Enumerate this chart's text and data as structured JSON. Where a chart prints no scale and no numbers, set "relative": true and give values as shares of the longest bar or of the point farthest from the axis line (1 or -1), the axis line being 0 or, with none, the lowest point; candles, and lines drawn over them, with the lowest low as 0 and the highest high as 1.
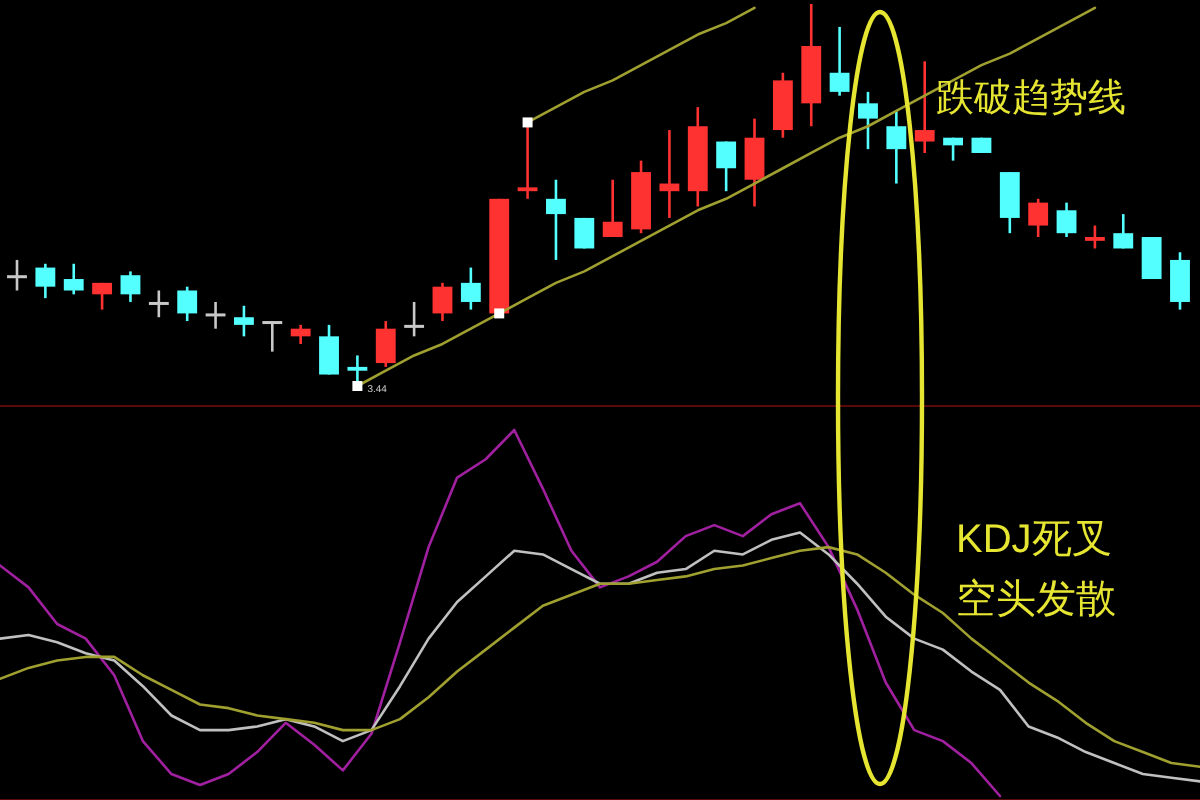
{
  "chart_data": [
    {
      "type": "candlestick",
      "relative": true,
      "categories": [
        null,
        null,
        null,
        null,
        null,
        null,
        null,
        null,
        null,
        null,
        null,
        null,
        null,
        null,
        null,
        null,
        null,
        null,
        null,
        null,
        null,
        null,
        null,
        null,
        null,
        null,
        null,
        null,
        null,
        null,
        null,
        null,
        null,
        null,
        null,
        null,
        null,
        null,
        null,
        null,
        null,
        null
      ],
      "ohlc": [
        [
          0.29,
          0.33,
          0.25,
          0.29
        ],
        [
          0.31,
          0.32,
          0.23,
          0.26
        ],
        [
          0.28,
          0.32,
          0.24,
          0.25
        ],
        [
          0.24,
          0.27,
          0.2,
          0.27
        ],
        [
          0.29,
          0.3,
          0.22,
          0.24
        ],
        [
          0.22,
          0.25,
          0.18,
          0.22
        ],
        [
          0.25,
          0.26,
          0.17,
          0.19
        ],
        [
          0.19,
          0.22,
          0.15,
          0.19
        ],
        [
          0.18,
          0.21,
          0.13,
          0.16
        ],
        [
          0.17,
          0.17,
          0.09,
          0.17
        ],
        [
          0.13,
          0.16,
          0.11,
          0.15
        ],
        [
          0.13,
          0.16,
          0.03,
          0.03
        ],
        [
          0.05,
          0.08,
          0,
          0.04
        ],
        [
          0.06,
          0.17,
          0.05,
          0.15
        ],
        [
          0.16,
          0.22,
          0.13,
          0.16
        ],
        [
          0.19,
          0.27,
          0.17,
          0.26
        ],
        [
          0.27,
          0.31,
          0.2,
          0.22
        ],
        [
          0.19,
          0.49,
          0.19,
          0.49
        ],
        [
          0.51,
          0.69,
          0.49,
          0.52
        ],
        [
          0.49,
          0.54,
          0.33,
          0.45
        ],
        [
          0.44,
          0.44,
          0.36,
          0.36
        ],
        [
          0.39,
          0.54,
          0.39,
          0.43
        ],
        [
          0.41,
          0.59,
          0.4,
          0.56
        ],
        [
          0.51,
          0.67,
          0.44,
          0.53
        ],
        [
          0.51,
          0.73,
          0.47,
          0.68
        ],
        [
          0.64,
          0.64,
          0.51,
          0.57
        ],
        [
          0.54,
          0.7,
          0.47,
          0.65
        ],
        [
          0.67,
          0.82,
          0.65,
          0.8
        ],
        [
          0.74,
          1,
          0.68,
          0.89
        ],
        [
          0.82,
          0.94,
          0.76,
          0.77
        ],
        [
          0.74,
          0.77,
          0.62,
          0.7
        ],
        [
          0.68,
          0.72,
          0.53,
          0.62
        ],
        [
          0.64,
          0.85,
          0.61,
          0.67
        ],
        [
          0.65,
          0.65,
          0.59,
          0.63
        ],
        [
          0.65,
          0.65,
          0.61,
          0.61
        ],
        [
          0.56,
          0.56,
          0.4,
          0.44
        ],
        [
          0.42,
          0.49,
          0.39,
          0.48
        ],
        [
          0.46,
          0.48,
          0.39,
          0.4
        ],
        [
          0.38,
          0.42,
          0.36,
          0.39
        ],
        [
          0.4,
          0.45,
          0.36,
          0.36
        ],
        [
          0.39,
          0.39,
          0.28,
          0.28
        ],
        [
          0.33,
          0.35,
          0.2,
          0.22
        ]
      ],
      "colors": [
        "#c8c8c8",
        "#54ffff",
        "#54ffff",
        "#ff3232",
        "#54ffff",
        "#c8c8c8",
        "#54ffff",
        "#c8c8c8",
        "#54ffff",
        "#c8c8c8",
        "#ff3232",
        "#54ffff",
        "#54ffff",
        "#ff3232",
        "#c8c8c8",
        "#ff3232",
        "#54ffff",
        "#ff3232",
        "#ff3232",
        "#54ffff",
        "#54ffff",
        "#ff3232",
        "#ff3232",
        "#ff3232",
        "#ff3232",
        "#54ffff",
        "#ff3232",
        "#ff3232",
        "#ff3232",
        "#54ffff",
        "#54ffff",
        "#54ffff",
        "#ff3232",
        "#54ffff",
        "#54ffff",
        "#54ffff",
        "#ff3232",
        "#54ffff",
        "#ff3232",
        "#54ffff",
        "#54ffff",
        "#54ffff"
      ],
      "series": [
        {
          "type": "line",
          "color": "#a0a030",
          "values": [
            null,
            null,
            null,
            null,
            null,
            null,
            null,
            null,
            null,
            null,
            null,
            null,
            null,
            null,
            null,
            null,
            null,
            null,
            0.69,
            0.73,
            0.77,
            0.8,
            0.84,
            0.88,
            0.92,
            0.95,
            0.99,
            null,
            null,
            null,
            null,
            null,
            null,
            null,
            null,
            null,
            null,
            null,
            null,
            null,
            null,
            null
          ]
        },
        {
          "type": "line",
          "color": "#a0a030",
          "values": [
            null,
            null,
            null,
            null,
            null,
            null,
            null,
            null,
            null,
            null,
            null,
            null,
            0,
            0.04,
            0.08,
            0.11,
            0.15,
            0.19,
            0.23,
            0.27,
            0.3,
            0.34,
            0.38,
            0.42,
            0.46,
            0.49,
            0.53,
            0.57,
            0.61,
            0.65,
            0.68,
            0.72,
            0.76,
            0.8,
            0.84,
            0.87,
            0.91,
            0.95,
            0.99,
            null,
            null,
            null
          ]
        },
        {
          "type": "scatter",
          "color": "#ffffff",
          "values": [
            null,
            null,
            null,
            null,
            null,
            null,
            null,
            null,
            null,
            null,
            null,
            null,
            0,
            null,
            null,
            null,
            null,
            0.19,
            0.69,
            null,
            null,
            null,
            null,
            null,
            null,
            null,
            null,
            null,
            null,
            null,
            null,
            null,
            null,
            null,
            null,
            null,
            null,
            null,
            null,
            null,
            null,
            null
          ]
        }
      ],
      "annotations": [
        "3.44",
        "跌破趋势线"
      ]
    },
    {
      "type": "line",
      "relative": true,
      "categories": [
        null,
        null,
        null,
        null,
        null,
        null,
        null,
        null,
        null,
        null,
        null,
        null,
        null,
        null,
        null,
        null,
        null,
        null,
        null,
        null,
        null,
        null,
        null,
        null,
        null,
        null,
        null,
        null,
        null,
        null,
        null,
        null,
        null,
        null,
        null,
        null,
        null,
        null,
        null,
        null,
        null,
        null,
        null
      ],
      "series": [
        {
          "color": "#a020a0",
          "values": [
            0.63,
            0.57,
            0.47,
            0.43,
            0.33,
            0.15,
            0.06,
            0.03,
            0.06,
            0.12,
            0.2,
            0.14,
            0.07,
            0.17,
            0.42,
            0.68,
            0.87,
            0.92,
            1.0,
            0.84,
            0.67,
            0.57,
            0.6,
            0.64,
            0.71,
            0.74,
            0.71,
            0.77,
            0.8,
            0.68,
            0.51,
            0.31,
            0.18,
            0.15,
            0.09,
            0,
            null,
            null,
            null,
            null,
            null,
            null,
            null
          ]
        },
        {
          "color": "#c0c0c0",
          "values": [
            0.43,
            0.44,
            0.42,
            0.39,
            0.37,
            0.3,
            0.22,
            0.18,
            0.18,
            0.19,
            0.21,
            0.19,
            0.15,
            0.18,
            0.3,
            0.43,
            0.53,
            0.6,
            0.67,
            0.66,
            0.62,
            0.58,
            0.58,
            0.61,
            0.62,
            0.67,
            0.66,
            0.7,
            0.72,
            0.66,
            0.58,
            0.49,
            0.43,
            0.4,
            0.34,
            0.29,
            0.19,
            0.16,
            0.12,
            0.09,
            0.06,
            0.05,
            0.04
          ]
        },
        {
          "color": "#a0a030",
          "values": [
            0.32,
            0.35,
            0.37,
            0.38,
            0.38,
            0.33,
            0.29,
            0.25,
            0.24,
            0.22,
            0.21,
            0.2,
            0.18,
            0.18,
            0.21,
            0.27,
            0.34,
            0.4,
            0.46,
            0.52,
            0.55,
            0.58,
            0.58,
            0.59,
            0.6,
            0.62,
            0.63,
            0.65,
            0.67,
            0.68,
            0.66,
            0.61,
            0.55,
            0.5,
            0.43,
            0.37,
            0.31,
            0.26,
            0.2,
            0.15,
            0.12,
            0.09,
            0.08
          ]
        }
      ],
      "annotations": [
        "KDJ死叉",
        "空头发散"
      ]
    }
  ]
}
